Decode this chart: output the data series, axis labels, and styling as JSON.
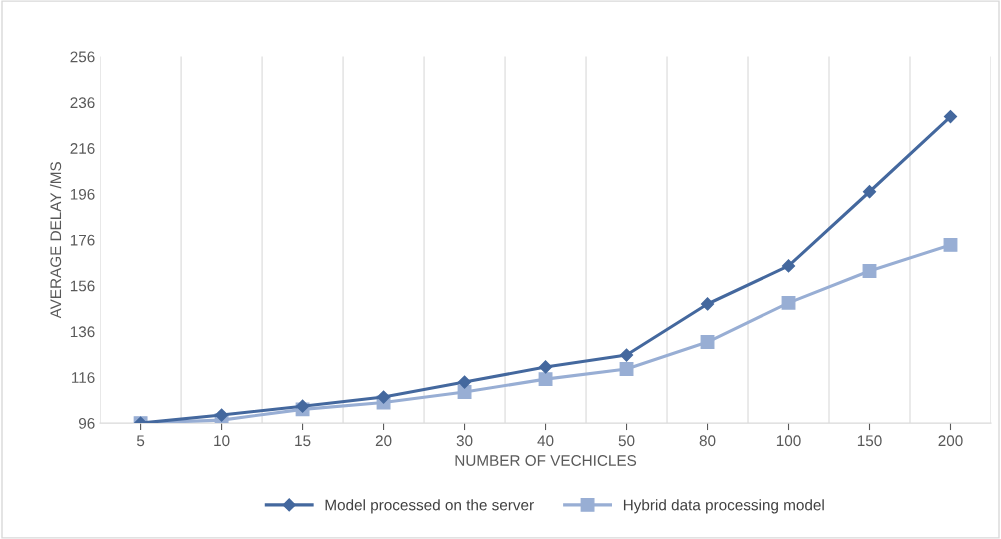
{
  "chart_data": {
    "type": "line",
    "xlabel": "NUMBER OF VECHICLES",
    "ylabel": "AVERAGE DELAY /MS",
    "categories": [
      "5",
      "10",
      "15",
      "20",
      "30",
      "40",
      "50",
      "80",
      "100",
      "150",
      "200"
    ],
    "series": [
      {
        "name": "Model processed on the server",
        "color": "#44689e",
        "marker": "diamond",
        "values": [
          96,
          99.5,
          103.4,
          107.4,
          113.9,
          120.5,
          125.7,
          148,
          164.6,
          197,
          229.8
        ]
      },
      {
        "name": "Hybrid data processing model",
        "color": "#98aed4",
        "marker": "square",
        "values": [
          96,
          97.3,
          102,
          105,
          109.6,
          115.2,
          119.6,
          131.4,
          148.5,
          162.4,
          173.8
        ]
      }
    ],
    "ylim": [
      96,
      256
    ],
    "yticks": [
      96,
      116,
      136,
      156,
      176,
      196,
      216,
      236,
      256
    ],
    "grid": "x",
    "legend": "bottom",
    "line_style": "solid"
  }
}
